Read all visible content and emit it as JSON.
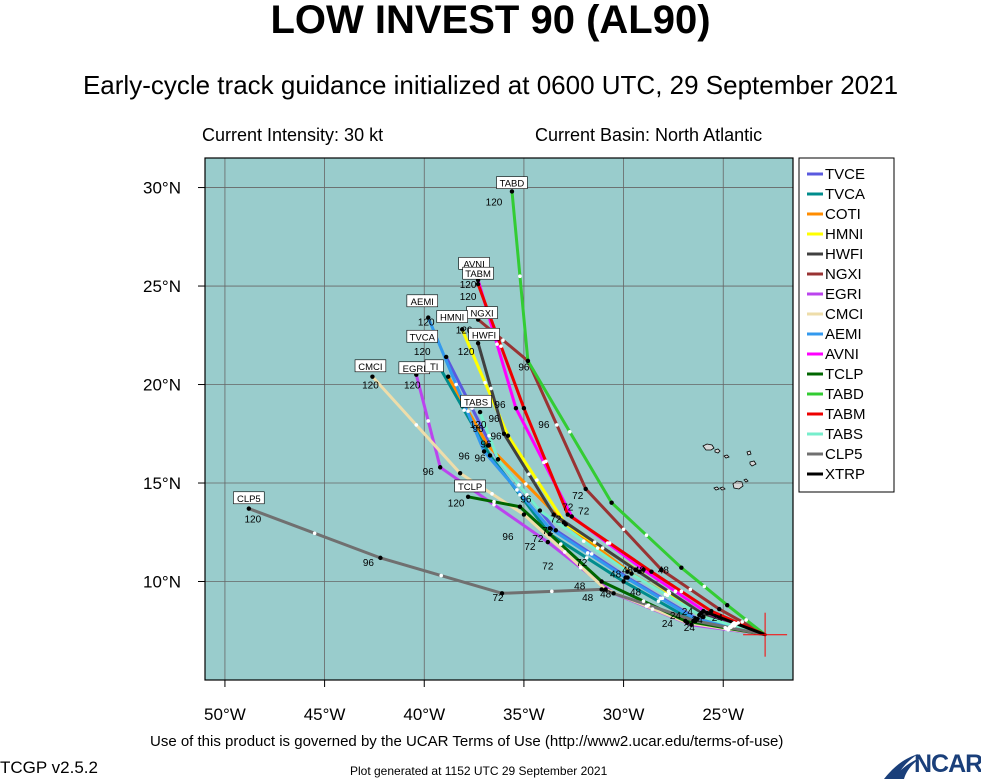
{
  "header": {
    "title": "LOW INVEST 90 (AL90)",
    "subtitle": "Early-cycle track guidance initialized at 0600 UTC, 29 September 2021",
    "intensity": "Current Intensity: 30 kt",
    "basin": "Current Basin: North Atlantic"
  },
  "footer": {
    "terms": "Use of this product is governed by the UCAR Terms of Use (http://www2.ucar.edu/terms-of-use)",
    "version": "TCGP v2.5.2",
    "generated": "Plot generated at 1152 UTC   29 September 2021",
    "logo_text": "NCAR"
  },
  "chart_data": {
    "type": "line",
    "xlim": [
      -51,
      -21.5
    ],
    "ylim": [
      5,
      31.5
    ],
    "x_ticks": [
      {
        "value": -50,
        "label": "50°W"
      },
      {
        "value": -45,
        "label": "45°W"
      },
      {
        "value": -40,
        "label": "40°W"
      },
      {
        "value": -35,
        "label": "35°W"
      },
      {
        "value": -30,
        "label": "30°W"
      },
      {
        "value": -25,
        "label": "25°W"
      }
    ],
    "y_ticks": [
      {
        "value": 10,
        "label": "10°N"
      },
      {
        "value": 15,
        "label": "15°N"
      },
      {
        "value": 20,
        "label": "20°N"
      },
      {
        "value": 25,
        "label": "25°N"
      },
      {
        "value": 30,
        "label": "30°N"
      }
    ],
    "grid": true,
    "legend_position": "right",
    "colors": {
      "ocean": "#99cccc",
      "land": "#d8d8d8",
      "grid": "#666666",
      "current_position": "#ff0000"
    },
    "initial_position": [
      -22.9,
      7.3
    ],
    "series": [
      {
        "name": "TVCE",
        "color": "#5a5adf",
        "points": [
          [
            -22.9,
            7.3
          ],
          [
            -26.3,
            8.1
          ],
          [
            -29.8,
            10.2
          ],
          [
            -33.4,
            12.6
          ],
          [
            -36.3,
            16.2
          ],
          [
            -38.9,
            21.4
          ]
        ],
        "end_label": ""
      },
      {
        "name": "TVCA",
        "color": "#008c8c",
        "points": [
          [
            -22.9,
            7.3
          ],
          [
            -26.5,
            8.0
          ],
          [
            -30.0,
            10.0
          ],
          [
            -33.7,
            12.4
          ],
          [
            -36.7,
            16.4
          ],
          [
            -39.3,
            21.0
          ]
        ],
        "end_label": "TVCA"
      },
      {
        "name": "COTI",
        "color": "#ff8c00",
        "points": [
          [
            -22.9,
            7.3
          ],
          [
            -26.0,
            8.2
          ],
          [
            -29.6,
            10.4
          ],
          [
            -33.0,
            13.0
          ],
          [
            -36.8,
            16.9
          ],
          [
            -38.8,
            20.4
          ]
        ],
        "end_label": "TI"
      },
      {
        "name": "HMNI",
        "color": "#ffff00",
        "points": [
          [
            -22.9,
            7.3
          ],
          [
            -26.2,
            8.3
          ],
          [
            -29.2,
            10.5
          ],
          [
            -32.9,
            12.9
          ],
          [
            -35.8,
            17.4
          ],
          [
            -38.1,
            22.8
          ]
        ],
        "end_label": "HMNI"
      },
      {
        "name": "HWFI",
        "color": "#404040",
        "points": [
          [
            -22.9,
            7.3
          ],
          [
            -26.1,
            8.4
          ],
          [
            -29.4,
            10.6
          ],
          [
            -33.5,
            13.4
          ],
          [
            -36.0,
            17.5
          ],
          [
            -37.3,
            22.1
          ]
        ],
        "end_label": "HWFI"
      },
      {
        "name": "NGXI",
        "color": "#993333",
        "points": [
          [
            -22.9,
            7.3
          ],
          [
            -25.2,
            8.6
          ],
          [
            -28.1,
            10.6
          ],
          [
            -31.9,
            14.7
          ],
          [
            -34.8,
            21.2
          ],
          [
            -37.3,
            23.3
          ]
        ],
        "end_label": "NGXI"
      },
      {
        "name": "EGRI",
        "color": "#bb44ee",
        "points": [
          [
            -22.9,
            7.3
          ],
          [
            -26.6,
            7.8
          ],
          [
            -30.5,
            9.4
          ],
          [
            -33.8,
            12.0
          ],
          [
            -39.2,
            15.8
          ],
          [
            -40.4,
            20.5
          ]
        ],
        "end_label": "EGRI"
      },
      {
        "name": "CMCI",
        "color": "#eeddaa",
        "points": [
          [
            -22.9,
            7.3
          ],
          [
            -26.8,
            7.9
          ],
          [
            -30.9,
            9.6
          ],
          [
            -35.0,
            13.4
          ],
          [
            -38.2,
            15.5
          ],
          [
            -42.6,
            20.4
          ]
        ],
        "end_label": "CMCI"
      },
      {
        "name": "AEMI",
        "color": "#3399ee",
        "points": [
          [
            -22.9,
            7.3
          ],
          [
            -26.4,
            8.1
          ],
          [
            -29.9,
            10.2
          ],
          [
            -33.7,
            12.7
          ],
          [
            -37.0,
            16.6
          ],
          [
            -39.8,
            23.4
          ]
        ],
        "end_label": "AEMI"
      },
      {
        "name": "AVNI",
        "color": "#ff00ff",
        "points": [
          [
            -22.9,
            7.3
          ],
          [
            -25.8,
            8.4
          ],
          [
            -29.0,
            10.6
          ],
          [
            -32.6,
            13.3
          ],
          [
            -35.4,
            18.8
          ],
          [
            -37.3,
            25.3
          ]
        ],
        "end_label": "AVNI"
      },
      {
        "name": "TCLP",
        "color": "#006600",
        "points": [
          [
            -22.9,
            7.3
          ],
          [
            -26.9,
            8.0
          ],
          [
            -31.1,
            10.0
          ],
          [
            -35.2,
            13.8
          ],
          [
            -37.8,
            14.3
          ]
        ],
        "end_label": "TCLP"
      },
      {
        "name": "TABD",
        "color": "#33cc33",
        "points": [
          [
            -22.9,
            7.3
          ],
          [
            -24.8,
            8.8
          ],
          [
            -27.1,
            10.7
          ],
          [
            -30.6,
            14.0
          ],
          [
            -34.8,
            21.2
          ],
          [
            -35.6,
            29.8
          ]
        ],
        "end_label": "TABD"
      },
      {
        "name": "TABM",
        "color": "#ee0000",
        "points": [
          [
            -22.9,
            7.3
          ],
          [
            -25.6,
            8.5
          ],
          [
            -28.6,
            10.5
          ],
          [
            -32.8,
            13.4
          ],
          [
            -35.0,
            18.8
          ],
          [
            -37.3,
            25.1
          ]
        ],
        "end_label": "TABM"
      },
      {
        "name": "TABS",
        "color": "#77eecc",
        "points": [
          [
            -22.9,
            7.3
          ],
          [
            -26.0,
            8.2
          ],
          [
            -29.8,
            10.5
          ],
          [
            -34.2,
            13.6
          ],
          [
            -36.3,
            16.2
          ],
          [
            -37.2,
            18.6
          ]
        ],
        "end_label": "TABS"
      },
      {
        "name": "CLP5",
        "color": "#707070",
        "points": [
          [
            -22.9,
            7.3
          ],
          [
            -26.4,
            8.0
          ],
          [
            -31.1,
            9.6
          ],
          [
            -36.1,
            9.4
          ],
          [
            -42.2,
            11.2
          ],
          [
            -48.8,
            13.7
          ]
        ],
        "end_label": "CLP5"
      },
      {
        "name": "XTRP",
        "color": "#000000",
        "points": [
          [
            -22.9,
            7.3
          ],
          [
            -26.0,
            8.5
          ]
        ],
        "end_label": ""
      }
    ],
    "time_labels": [
      {
        "text": "24",
        "lon": -26.7,
        "lat": 7.5
      },
      {
        "text": "24",
        "lon": -27.8,
        "lat": 7.7
      },
      {
        "text": "24",
        "lon": -26.3,
        "lat": 7.9
      },
      {
        "text": "24",
        "lon": -25.3,
        "lat": 8.0
      },
      {
        "text": "24",
        "lon": -27.4,
        "lat": 8.1
      },
      {
        "text": "24",
        "lon": -26.8,
        "lat": 8.3
      },
      {
        "text": "48",
        "lon": -31.8,
        "lat": 9.0
      },
      {
        "text": "48",
        "lon": -32.2,
        "lat": 9.6
      },
      {
        "text": "48",
        "lon": -29.4,
        "lat": 9.3
      },
      {
        "text": "48",
        "lon": -30.9,
        "lat": 9.2
      },
      {
        "text": "48",
        "lon": -30.4,
        "lat": 10.2
      },
      {
        "text": "48",
        "lon": -29.8,
        "lat": 10.4
      },
      {
        "text": "48",
        "lon": -29.2,
        "lat": 10.4
      },
      {
        "text": "48",
        "lon": -28.0,
        "lat": 10.4
      },
      {
        "text": "72",
        "lon": -36.3,
        "lat": 9.0
      },
      {
        "text": "72",
        "lon": -33.8,
        "lat": 10.6
      },
      {
        "text": "72",
        "lon": -32.1,
        "lat": 10.8
      },
      {
        "text": "72",
        "lon": -34.7,
        "lat": 11.6
      },
      {
        "text": "72",
        "lon": -34.3,
        "lat": 12.0
      },
      {
        "text": "72",
        "lon": -33.8,
        "lat": 12.4
      },
      {
        "text": "72",
        "lon": -33.4,
        "lat": 13.0
      },
      {
        "text": "72",
        "lon": -32.8,
        "lat": 13.6
      },
      {
        "text": "72",
        "lon": -32.0,
        "lat": 13.4
      },
      {
        "text": "72",
        "lon": -32.3,
        "lat": 14.2
      },
      {
        "text": "96",
        "lon": -42.8,
        "lat": 10.8
      },
      {
        "text": "96",
        "lon": -35.8,
        "lat": 12.1
      },
      {
        "text": "96",
        "lon": -34.9,
        "lat": 14.0
      },
      {
        "text": "96",
        "lon": -39.8,
        "lat": 15.4
      },
      {
        "text": "96",
        "lon": -38.0,
        "lat": 16.2
      },
      {
        "text": "96",
        "lon": -37.2,
        "lat": 16.1
      },
      {
        "text": "96",
        "lon": -36.9,
        "lat": 16.8
      },
      {
        "text": "96",
        "lon": -36.4,
        "lat": 17.2
      },
      {
        "text": "96",
        "lon": -37.3,
        "lat": 17.6
      },
      {
        "text": "96",
        "lon": -36.5,
        "lat": 18.1
      },
      {
        "text": "96",
        "lon": -36.2,
        "lat": 18.8
      },
      {
        "text": "96",
        "lon": -34.0,
        "lat": 17.8
      },
      {
        "text": "96",
        "lon": -35.0,
        "lat": 20.7
      },
      {
        "text": "120",
        "lon": -48.6,
        "lat": 13.0
      },
      {
        "text": "120",
        "lon": -38.4,
        "lat": 13.8
      },
      {
        "text": "120",
        "lon": -42.7,
        "lat": 19.8
      },
      {
        "text": "120",
        "lon": -40.6,
        "lat": 19.8
      },
      {
        "text": "120",
        "lon": -40.1,
        "lat": 21.5
      },
      {
        "text": "120",
        "lon": -39.9,
        "lat": 23.0
      },
      {
        "text": "120",
        "lon": -37.3,
        "lat": 17.8
      },
      {
        "text": "120",
        "lon": -37.9,
        "lat": 21.5
      },
      {
        "text": "120",
        "lon": -38.0,
        "lat": 22.6
      },
      {
        "text": "120",
        "lon": -37.8,
        "lat": 24.3
      },
      {
        "text": "120",
        "lon": -37.8,
        "lat": 24.9
      },
      {
        "text": "120",
        "lon": -36.5,
        "lat": 29.1
      }
    ],
    "box_labels": [
      {
        "text": "TABD",
        "lon": -35.6,
        "lat": 30.2
      },
      {
        "text": "AVNI",
        "lon": -37.5,
        "lat": 26.1
      },
      {
        "text": "TABM",
        "lon": -37.3,
        "lat": 25.6
      },
      {
        "text": "AEMI",
        "lon": -40.1,
        "lat": 24.2
      },
      {
        "text": "NGXI",
        "lon": -37.1,
        "lat": 23.6
      },
      {
        "text": "HMNI",
        "lon": -38.6,
        "lat": 23.4
      },
      {
        "text": "TVCA",
        "lon": -40.1,
        "lat": 22.4
      },
      {
        "text": "HWFI",
        "lon": -37.0,
        "lat": 22.5
      },
      {
        "text": "CMCI",
        "lon": -42.7,
        "lat": 20.9
      },
      {
        "text": "EGRI",
        "lon": -40.5,
        "lat": 20.8
      },
      {
        "text": "TI",
        "lon": -39.5,
        "lat": 20.9
      },
      {
        "text": "TABS",
        "lon": -37.4,
        "lat": 19.1
      },
      {
        "text": "TCLP",
        "lon": -37.7,
        "lat": 14.8
      },
      {
        "text": "CLP5",
        "lon": -48.8,
        "lat": 14.2
      }
    ]
  }
}
